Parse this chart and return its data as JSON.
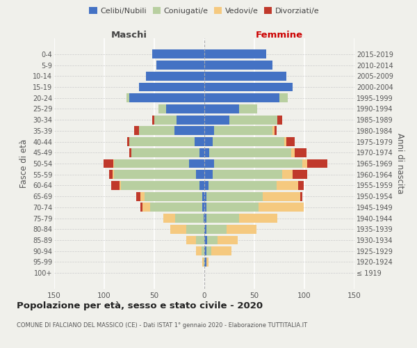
{
  "age_groups": [
    "100+",
    "95-99",
    "90-94",
    "85-89",
    "80-84",
    "75-79",
    "70-74",
    "65-69",
    "60-64",
    "55-59",
    "50-54",
    "45-49",
    "40-44",
    "35-39",
    "30-34",
    "25-29",
    "20-24",
    "15-19",
    "10-14",
    "5-9",
    "0-4"
  ],
  "birth_years": [
    "≤ 1919",
    "1920-1924",
    "1925-1929",
    "1930-1934",
    "1935-1939",
    "1940-1944",
    "1945-1949",
    "1950-1954",
    "1955-1959",
    "1960-1964",
    "1965-1969",
    "1970-1974",
    "1975-1979",
    "1980-1984",
    "1985-1989",
    "1990-1994",
    "1995-1999",
    "2000-2004",
    "2005-2009",
    "2010-2014",
    "2015-2019"
  ],
  "male_celibe": [
    0,
    0,
    0,
    0,
    0,
    1,
    2,
    2,
    5,
    8,
    15,
    5,
    10,
    30,
    28,
    38,
    75,
    65,
    58,
    48,
    52
  ],
  "male_coniugato": [
    0,
    1,
    3,
    8,
    18,
    28,
    52,
    58,
    78,
    82,
    75,
    68,
    65,
    35,
    22,
    8,
    3,
    0,
    0,
    0,
    0
  ],
  "male_vedovo": [
    0,
    1,
    5,
    10,
    16,
    12,
    8,
    4,
    2,
    2,
    1,
    0,
    0,
    0,
    0,
    0,
    0,
    0,
    0,
    0,
    0
  ],
  "male_divorziato": [
    0,
    0,
    0,
    0,
    0,
    0,
    2,
    4,
    8,
    3,
    10,
    2,
    2,
    5,
    2,
    0,
    0,
    0,
    0,
    0,
    0
  ],
  "female_nubile": [
    0,
    2,
    2,
    3,
    2,
    2,
    2,
    2,
    4,
    8,
    10,
    5,
    8,
    10,
    25,
    35,
    75,
    88,
    82,
    68,
    62
  ],
  "female_coniugata": [
    0,
    0,
    5,
    10,
    20,
    33,
    52,
    56,
    68,
    70,
    88,
    82,
    72,
    58,
    48,
    18,
    8,
    0,
    0,
    0,
    0
  ],
  "female_vedova": [
    0,
    2,
    20,
    20,
    30,
    38,
    45,
    38,
    22,
    10,
    5,
    3,
    2,
    2,
    0,
    0,
    0,
    0,
    0,
    0,
    0
  ],
  "female_divorziata": [
    0,
    0,
    0,
    0,
    0,
    0,
    0,
    2,
    5,
    15,
    20,
    12,
    8,
    2,
    5,
    0,
    0,
    0,
    0,
    0,
    0
  ],
  "colors": {
    "celibe": "#4472c4",
    "coniugato": "#b8cfa0",
    "vedovo": "#f5c97f",
    "divorziato": "#c0392b"
  },
  "title": "Popolazione per età, sesso e stato civile - 2020",
  "subtitle": "COMUNE DI FALCIANO DEL MASSICO (CE) - Dati ISTAT 1° gennaio 2020 - Elaborazione TUTTITALIA.IT",
  "xlabel_left": "Maschi",
  "xlabel_right": "Femmine",
  "ylabel": "Fasce di età",
  "ylabel_right": "Anni di nascita",
  "xlim": 150,
  "bg_color": "#f0f0eb",
  "legend_labels": [
    "Celibi/Nubili",
    "Coniugati/e",
    "Vedovi/e",
    "Divorziati/e"
  ]
}
